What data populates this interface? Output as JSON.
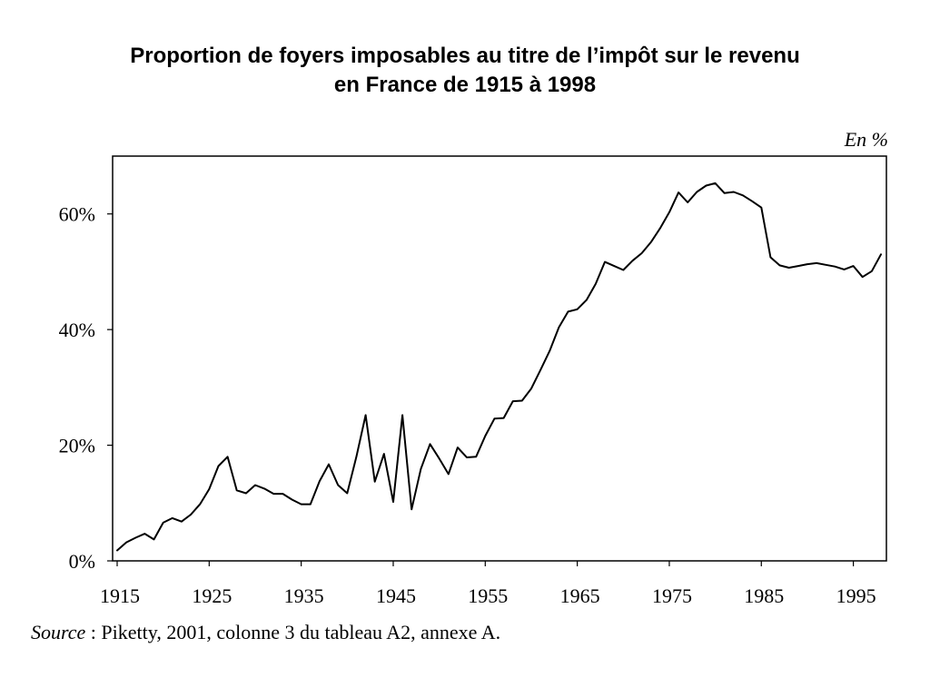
{
  "title": {
    "line1": "Proportion de foyers imposables au titre  de l’impôt sur le revenu",
    "line2": "en France de 1915 à 1998"
  },
  "source": {
    "label": "Source",
    "separator": " : ",
    "text": "Piketty, 2001, colonne 3 du tableau A2, annexe A."
  },
  "chart_data": {
    "type": "line",
    "unit_label": "En %",
    "xlim": [
      1915,
      1998
    ],
    "ylim": [
      0,
      70
    ],
    "x_ticks": [
      1915,
      1925,
      1935,
      1945,
      1955,
      1965,
      1975,
      1985,
      1995
    ],
    "y_ticks": [
      0,
      20,
      40,
      60
    ],
    "y_tick_labels": [
      "0%",
      "20%",
      "40%",
      "60%"
    ],
    "grid": false,
    "series": [
      {
        "color": "#000000",
        "x": [
          1915,
          1916,
          1917,
          1918,
          1919,
          1920,
          1921,
          1922,
          1923,
          1924,
          1925,
          1926,
          1927,
          1928,
          1929,
          1930,
          1931,
          1932,
          1933,
          1934,
          1935,
          1936,
          1937,
          1938,
          1939,
          1940,
          1941,
          1942,
          1943,
          1944,
          1945,
          1946,
          1947,
          1948,
          1949,
          1950,
          1951,
          1952,
          1953,
          1954,
          1955,
          1956,
          1957,
          1958,
          1959,
          1960,
          1961,
          1962,
          1963,
          1964,
          1965,
          1966,
          1967,
          1968,
          1969,
          1970,
          1971,
          1972,
          1973,
          1974,
          1975,
          1976,
          1977,
          1978,
          1979,
          1980,
          1981,
          1982,
          1983,
          1984,
          1985,
          1986,
          1987,
          1988,
          1989,
          1990,
          1991,
          1992,
          1993,
          1994,
          1995,
          1996,
          1997,
          1998
        ],
        "values": [
          1.8,
          3.2,
          4.0,
          4.7,
          3.7,
          6.6,
          7.4,
          6.8,
          8.0,
          9.8,
          12.4,
          16.4,
          18.0,
          12.2,
          11.7,
          13.1,
          12.5,
          11.6,
          11.6,
          10.6,
          9.8,
          9.8,
          13.8,
          16.7,
          13.1,
          11.7,
          18.0,
          25.2,
          13.7,
          18.5,
          10.2,
          25.2,
          8.9,
          15.9,
          20.2,
          17.7,
          15.0,
          19.6,
          17.9,
          18.0,
          21.6,
          24.6,
          24.7,
          27.6,
          27.7,
          29.8,
          33.0,
          36.3,
          40.4,
          43.1,
          43.5,
          45.1,
          47.9,
          51.7,
          51.0,
          50.3,
          51.9,
          53.2,
          55.1,
          57.5,
          60.3,
          63.7,
          62.0,
          63.8,
          64.9,
          65.3,
          63.6,
          63.8,
          63.2,
          62.2,
          61.1,
          52.5,
          51.1,
          50.7,
          51.0,
          51.3,
          51.5,
          51.2,
          50.9,
          50.4,
          51.0,
          49.1,
          50.1,
          53.0
        ]
      }
    ]
  }
}
